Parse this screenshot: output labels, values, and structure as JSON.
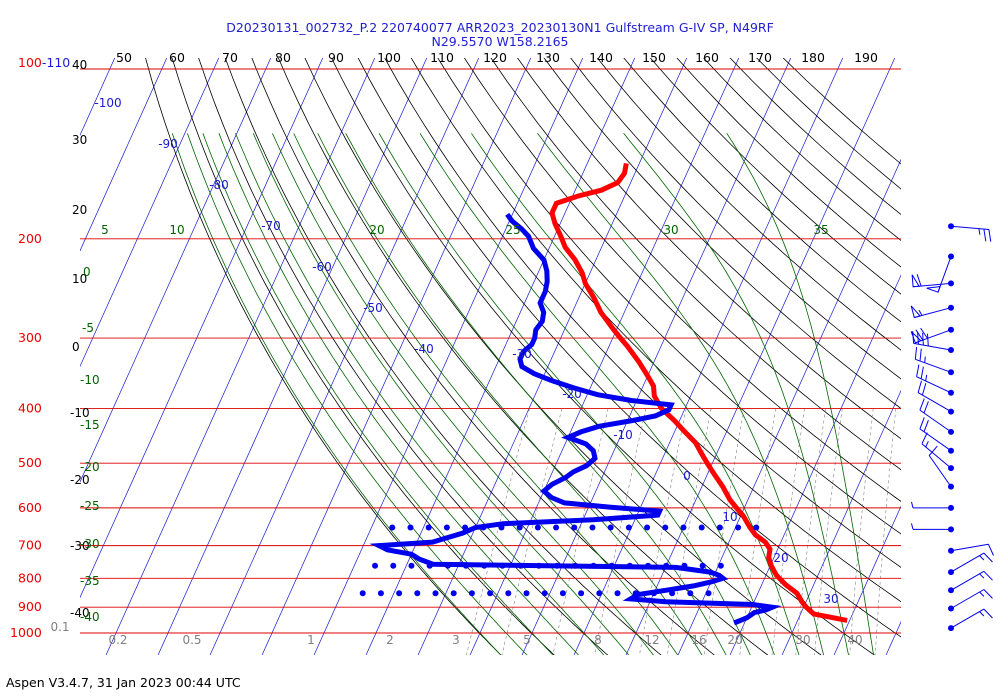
{
  "title": {
    "line1": "D20230131_002732_P.2 220740077 ARR2023_20230130N1 Gulfstream G-IV SP, N49RF",
    "line2": "N29.5570 W158.2165"
  },
  "footer": "Aspen V3.4.7, 31 Jan 2023  00:44 UTC",
  "chart_data": {
    "type": "skew-t",
    "pressure_labels": [
      "100-110",
      "200",
      "300",
      "400",
      "500",
      "600",
      "700",
      "800",
      "900",
      "1000"
    ],
    "pressure_levels": [
      100,
      200,
      300,
      400,
      500,
      600,
      700,
      800,
      900,
      1000
    ],
    "theta_labels": [
      "50",
      "60",
      "70",
      "80",
      "90",
      "100",
      "110",
      "120",
      "130",
      "140",
      "150",
      "160",
      "170",
      "180",
      "190"
    ],
    "altitude_labels": [
      "40",
      "30",
      "20",
      "10",
      "0",
      "-10",
      "-20",
      "-30",
      "-40"
    ],
    "temperature_labels": [
      "-100",
      "-90",
      "-80",
      "-70",
      "-60",
      "-50",
      "-40",
      "-30",
      "-20",
      "-10",
      "0",
      "10",
      "20",
      "30"
    ],
    "wet_bulb_labels": [
      "5",
      "10",
      "20",
      "25",
      "30",
      "35",
      "0",
      "-5",
      "-10",
      "-15",
      "-20",
      "-25",
      "-30",
      "-35",
      "-40"
    ],
    "mixing_ratio_labels": [
      "0.1",
      "0.2",
      "0.5",
      "1",
      "2",
      "3",
      "5",
      "8",
      "12",
      "16",
      "20",
      "30",
      "40"
    ],
    "temperature_profile": [
      {
        "p": 950,
        "t": 29.5
      },
      {
        "p": 925,
        "t": 22.5
      },
      {
        "p": 900,
        "t": 20.5
      },
      {
        "p": 880,
        "t": 19.2
      },
      {
        "p": 850,
        "t": 17.5
      },
      {
        "p": 820,
        "t": 14.5
      },
      {
        "p": 790,
        "t": 12.0
      },
      {
        "p": 760,
        "t": 10.2
      },
      {
        "p": 735,
        "t": 9.0
      },
      {
        "p": 710,
        "t": 8.5
      },
      {
        "p": 690,
        "t": 7.0
      },
      {
        "p": 670,
        "t": 4.5
      },
      {
        "p": 650,
        "t": 2.8
      },
      {
        "p": 620,
        "t": 0.5
      },
      {
        "p": 600,
        "t": -1.5
      },
      {
        "p": 580,
        "t": -3.5
      },
      {
        "p": 550,
        "t": -6.0
      },
      {
        "p": 520,
        "t": -9.0
      },
      {
        "p": 500,
        "t": -11.0
      },
      {
        "p": 480,
        "t": -13.0
      },
      {
        "p": 460,
        "t": -15.0
      },
      {
        "p": 440,
        "t": -18.0
      },
      {
        "p": 420,
        "t": -21.0
      },
      {
        "p": 400,
        "t": -24.5
      },
      {
        "p": 380,
        "t": -27.0
      },
      {
        "p": 365,
        "t": -28.0
      },
      {
        "p": 350,
        "t": -30.0
      },
      {
        "p": 330,
        "t": -33.0
      },
      {
        "p": 310,
        "t": -36.5
      },
      {
        "p": 300,
        "t": -38.5
      },
      {
        "p": 290,
        "t": -40.5
      },
      {
        "p": 270,
        "t": -44.5
      },
      {
        "p": 255,
        "t": -47.0
      },
      {
        "p": 240,
        "t": -50.0
      },
      {
        "p": 230,
        "t": -51.5
      },
      {
        "p": 218,
        "t": -54.0
      },
      {
        "p": 207,
        "t": -57.0
      },
      {
        "p": 197,
        "t": -59.0
      },
      {
        "p": 188,
        "t": -61.0
      },
      {
        "p": 180,
        "t": -62.5
      },
      {
        "p": 173,
        "t": -62.5
      },
      {
        "p": 168,
        "t": -59.0
      },
      {
        "p": 164,
        "t": -55.0
      },
      {
        "p": 159,
        "t": -52.5
      },
      {
        "p": 153,
        "t": -52.0
      },
      {
        "p": 147,
        "t": -52.5
      }
    ],
    "dewpoint_profile": [
      {
        "p": 960,
        "t": 8.0
      },
      {
        "p": 940,
        "t": 10.0
      },
      {
        "p": 930,
        "t": 10.5
      },
      {
        "p": 920,
        "t": 11.0
      },
      {
        "p": 910,
        "t": 13.0
      },
      {
        "p": 900,
        "t": 14.0
      },
      {
        "p": 890,
        "t": 10.0
      },
      {
        "p": 880,
        "t": -7.0
      },
      {
        "p": 870,
        "t": -14.0
      },
      {
        "p": 855,
        "t": -13.0
      },
      {
        "p": 840,
        "t": -8.0
      },
      {
        "p": 825,
        "t": -3.0
      },
      {
        "p": 812,
        "t": 0.0
      },
      {
        "p": 800,
        "t": 2.0
      },
      {
        "p": 790,
        "t": 1.0
      },
      {
        "p": 780,
        "t": -1.0
      },
      {
        "p": 765,
        "t": -8.0
      },
      {
        "p": 755,
        "t": -55.0
      },
      {
        "p": 740,
        "t": -58.0
      },
      {
        "p": 725,
        "t": -60.0
      },
      {
        "p": 712,
        "t": -65.0
      },
      {
        "p": 700,
        "t": -67.0
      },
      {
        "p": 690,
        "t": -57.0
      },
      {
        "p": 680,
        "t": -55.0
      },
      {
        "p": 665,
        "t": -52.0
      },
      {
        "p": 650,
        "t": -50.0
      },
      {
        "p": 640,
        "t": -45.0
      },
      {
        "p": 630,
        "t": -28.0
      },
      {
        "p": 618,
        "t": -16.0
      },
      {
        "p": 608,
        "t": -16.0
      },
      {
        "p": 598,
        "t": -26.0
      },
      {
        "p": 588,
        "t": -35.0
      },
      {
        "p": 575,
        "t": -38.0
      },
      {
        "p": 560,
        "t": -40.0
      },
      {
        "p": 545,
        "t": -39.0
      },
      {
        "p": 530,
        "t": -37.0
      },
      {
        "p": 518,
        "t": -36.0
      },
      {
        "p": 505,
        "t": -34.0
      },
      {
        "p": 490,
        "t": -33.0
      },
      {
        "p": 475,
        "t": -34.0
      },
      {
        "p": 462,
        "t": -36.0
      },
      {
        "p": 450,
        "t": -40.0
      },
      {
        "p": 440,
        "t": -38.0
      },
      {
        "p": 430,
        "t": -35.0
      },
      {
        "p": 420,
        "t": -29.0
      },
      {
        "p": 412,
        "t": -25.0
      },
      {
        "p": 402,
        "t": -23.0
      },
      {
        "p": 394,
        "t": -23.0
      },
      {
        "p": 387,
        "t": -31.0
      },
      {
        "p": 378,
        "t": -38.0
      },
      {
        "p": 368,
        "t": -43.0
      },
      {
        "p": 357,
        "t": -48.0
      },
      {
        "p": 347,
        "t": -52.0
      },
      {
        "p": 337,
        "t": -55.0
      },
      {
        "p": 327,
        "t": -56.0
      },
      {
        "p": 317,
        "t": -56.0
      },
      {
        "p": 308,
        "t": -55.0
      },
      {
        "p": 300,
        "t": -55.0
      },
      {
        "p": 290,
        "t": -55.5
      },
      {
        "p": 280,
        "t": -55.0
      },
      {
        "p": 270,
        "t": -55.5
      },
      {
        "p": 260,
        "t": -57.0
      },
      {
        "p": 248,
        "t": -57.0
      },
      {
        "p": 238,
        "t": -57.5
      },
      {
        "p": 228,
        "t": -58.5
      },
      {
        "p": 218,
        "t": -60.0
      },
      {
        "p": 208,
        "t": -63.0
      },
      {
        "p": 198,
        "t": -65.0
      },
      {
        "p": 192,
        "t": -67.0
      },
      {
        "p": 186,
        "t": -69.5
      },
      {
        "p": 181,
        "t": -71.0
      }
    ],
    "series": [
      {
        "name": "temperature",
        "color": "#ff0000"
      },
      {
        "name": "dewpoint",
        "color": "#0000ee"
      }
    ],
    "wind_barbs": [
      {
        "p": 190,
        "dir": 95,
        "kt": 25
      },
      {
        "p": 215,
        "dir": 200,
        "kt": 50
      },
      {
        "p": 240,
        "dir": 265,
        "kt": 60
      },
      {
        "p": 265,
        "dir": 255,
        "kt": 55
      },
      {
        "p": 290,
        "dir": 250,
        "kt": 70
      },
      {
        "p": 315,
        "dir": 280,
        "kt": 40
      },
      {
        "p": 345,
        "dir": 290,
        "kt": 25
      },
      {
        "p": 375,
        "dir": 295,
        "kt": 25
      },
      {
        "p": 405,
        "dir": 300,
        "kt": 20
      },
      {
        "p": 440,
        "dir": 305,
        "kt": 20
      },
      {
        "p": 475,
        "dir": 305,
        "kt": 20
      },
      {
        "p": 510,
        "dir": 310,
        "kt": 15
      },
      {
        "p": 550,
        "dir": 325,
        "kt": 10
      },
      {
        "p": 600,
        "dir": 270,
        "kt": 5
      },
      {
        "p": 655,
        "dir": 270,
        "kt": 5
      },
      {
        "p": 715,
        "dir": 80,
        "kt": 10
      },
      {
        "p": 780,
        "dir": 60,
        "kt": 15
      },
      {
        "p": 840,
        "dir": 60,
        "kt": 15
      },
      {
        "p": 905,
        "dir": 60,
        "kt": 15
      },
      {
        "p": 980,
        "dir": 60,
        "kt": 15
      }
    ],
    "colors": {
      "isobar": "#dd0000",
      "isotherm": "#1a1ad0",
      "dry_adiabat": "#000000",
      "moist_adiabat": "#006400",
      "mixing_ratio": "#808080",
      "pressure_label": "#ee0000"
    }
  }
}
